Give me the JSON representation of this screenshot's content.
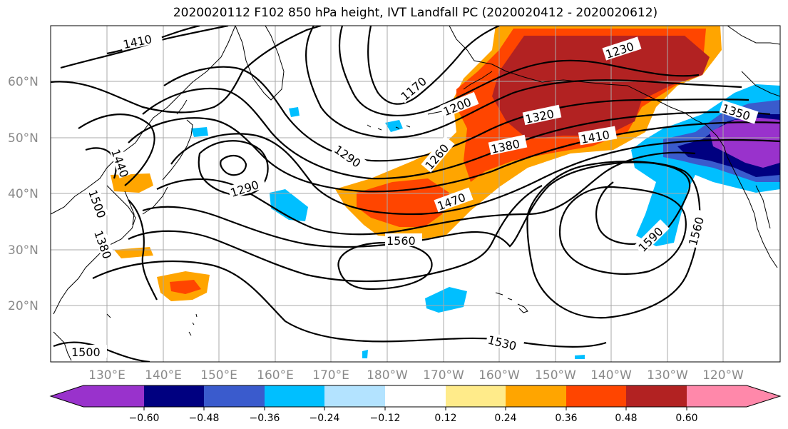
{
  "title": "2020020112 F102 850 hPa height, IVT Landfall PC (2020020412 - 2020020612)",
  "map": {
    "lat_labels": [
      "60°N",
      "50°N",
      "40°N",
      "30°N",
      "20°N"
    ],
    "lon_labels": [
      "130°E",
      "140°E",
      "150°E",
      "160°E",
      "170°E",
      "180°W",
      "170°W",
      "160°W",
      "150°W",
      "140°W",
      "130°W",
      "120°W"
    ],
    "contour_labels": [
      "1410",
      "1170",
      "1230",
      "1200",
      "1320",
      "1410",
      "1380",
      "1350",
      "1440",
      "1500",
      "1380",
      "1290",
      "1290",
      "1260",
      "1470",
      "1560",
      "1590",
      "1560",
      "1530",
      "1500"
    ],
    "colors": {
      "purple": "#9932cc",
      "navy": "#000080",
      "royal": "#3a5bcd",
      "sky": "#00bfff",
      "lightblue": "#b3e3ff",
      "white": "#ffffff",
      "lightyellow": "#ffeb8a",
      "orange": "#ffa500",
      "redorange": "#ff4500",
      "firebrick": "#b22222",
      "pink": "#ff88aa"
    }
  },
  "colorbar": {
    "ticks": [
      "−0.60",
      "−0.48",
      "−0.36",
      "−0.24",
      "−0.12",
      "0.12",
      "0.24",
      "0.36",
      "0.48",
      "0.60"
    ]
  }
}
